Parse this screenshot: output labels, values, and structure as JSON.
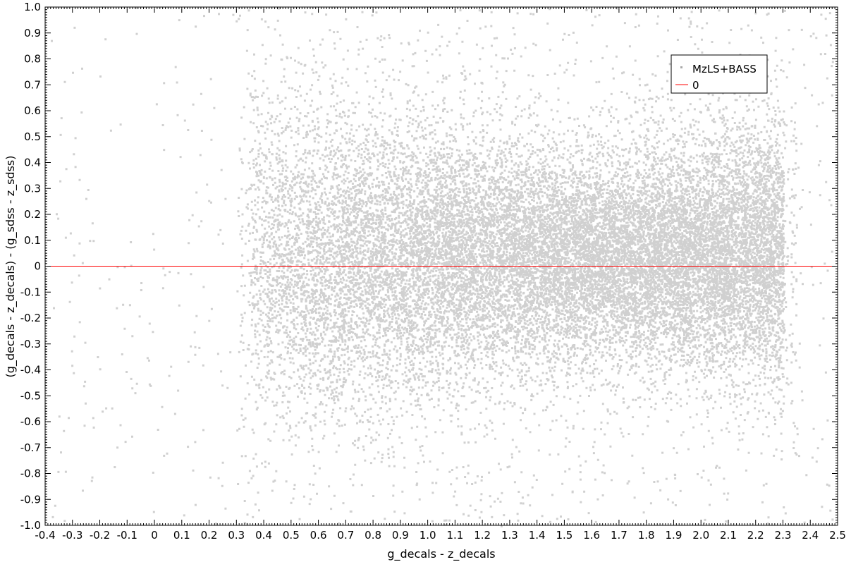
{
  "chart_data": {
    "type": "scatter",
    "xlabel": "g_decals - z_decals",
    "ylabel": "(g_decals - z_decals) - (g_sdss - z_sdss)",
    "xlim": [
      -0.4,
      2.5
    ],
    "ylim": [
      -1.0,
      1.0
    ],
    "x_ticks": [
      "-0.4",
      "-0.3",
      "-0.2",
      "-0.1",
      "0",
      "0.1",
      "0.2",
      "0.3",
      "0.4",
      "0.5",
      "0.6",
      "0.7",
      "0.8",
      "0.9",
      "1.0",
      "1.1",
      "1.2",
      "1.3",
      "1.4",
      "1.5",
      "1.6",
      "1.7",
      "1.8",
      "1.9",
      "2.0",
      "2.1",
      "2.2",
      "2.3",
      "2.4",
      "2.5"
    ],
    "y_ticks": [
      "1.0",
      "0.9",
      "0.8",
      "0.7",
      "0.6",
      "0.5",
      "0.4",
      "0.3",
      "0.2",
      "0.1",
      "0",
      "-0.1",
      "-0.2",
      "-0.3",
      "-0.4",
      "-0.5",
      "-0.6",
      "-0.7",
      "-0.8",
      "-0.9",
      "-1.0"
    ],
    "grid": false,
    "legend_position": "top-right",
    "series": [
      {
        "name": "MzLS+BASS",
        "kind": "points",
        "color": "#a9a9a9",
        "density_core": {
          "x_range": [
            0.35,
            2.3
          ],
          "peak_x": 1.65,
          "peak_y": 0.04,
          "y_spread": 0.18
        },
        "approx_point_count": 60000
      },
      {
        "name": "0",
        "kind": "line",
        "color": "#ff0000",
        "y": 0
      }
    ]
  }
}
